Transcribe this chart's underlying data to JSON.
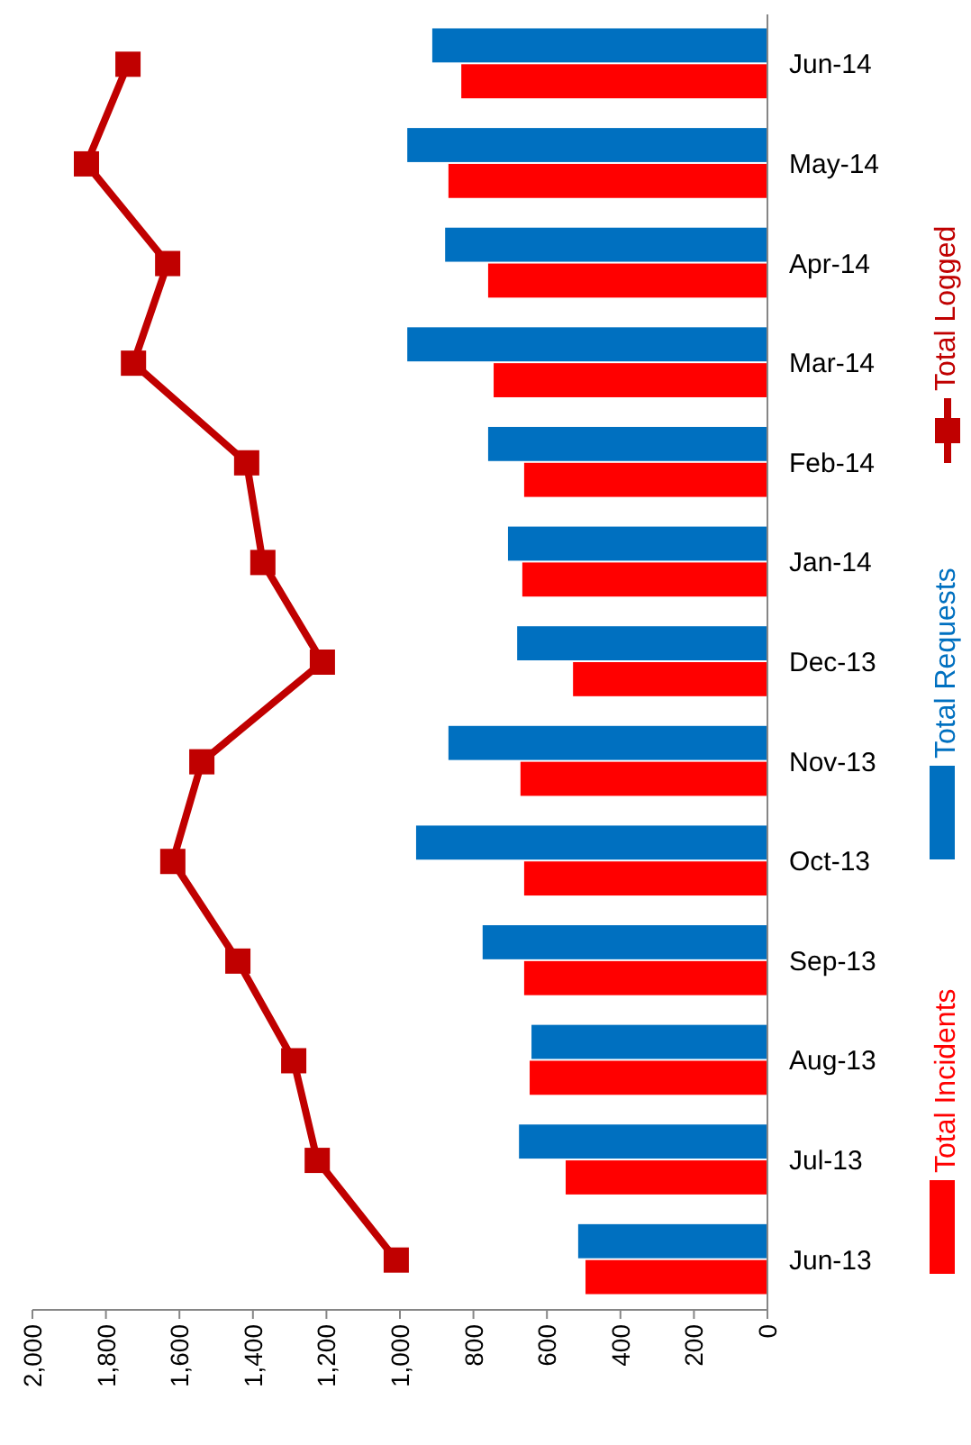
{
  "chart_data": {
    "type": "bar",
    "orientation": "horizontal",
    "categories": [
      "Jun-14",
      "May-14",
      "Apr-14",
      "Mar-14",
      "Feb-14",
      "Jan-14",
      "Dec-13",
      "Nov-13",
      "Oct-13",
      "Sep-13",
      "Aug-13",
      "Jul-13",
      "Jun-13"
    ],
    "series": [
      {
        "name": "Total Incidents",
        "color": "#ff0000",
        "values": [
          833,
          868,
          760,
          745,
          662,
          667,
          529,
          672,
          662,
          662,
          647,
          549,
          495
        ]
      },
      {
        "name": "Total Requests",
        "color": "#0070c0",
        "values": [
          912,
          980,
          877,
          980,
          760,
          706,
          681,
          868,
          956,
          775,
          642,
          676,
          515
        ]
      },
      {
        "name": "Total Logged",
        "type": "line",
        "color": "#c00000",
        "marker": "square",
        "values": [
          1740,
          1853,
          1632,
          1725,
          1417,
          1373,
          1211,
          1539,
          1618,
          1441,
          1289,
          1225,
          1010
        ]
      }
    ],
    "xlim": [
      2000,
      0
    ],
    "xticks": [
      {
        "value": 2000,
        "label": "2,000"
      },
      {
        "value": 1800,
        "label": "1,800"
      },
      {
        "value": 1600,
        "label": "1,600"
      },
      {
        "value": 1400,
        "label": "1,400"
      },
      {
        "value": 1200,
        "label": "1,200"
      },
      {
        "value": 1000,
        "label": "1,000"
      },
      800,
      600,
      400,
      200,
      0
    ],
    "grid": false,
    "legend": "right"
  }
}
